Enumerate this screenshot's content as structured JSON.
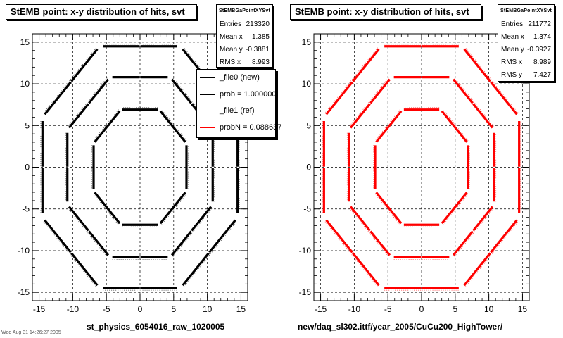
{
  "chart_data": [
    {
      "type": "scatter",
      "title": "StEMB point: x-y distribution of hits, svt",
      "xlabel": "st_physics_6054016_raw_1020005",
      "ylabel": "",
      "xlim": [
        -16,
        16
      ],
      "ylim": [
        -16,
        16
      ],
      "xticks": [
        -15,
        -10,
        -5,
        0,
        5,
        10,
        15
      ],
      "yticks": [
        -15,
        -10,
        -5,
        0,
        5,
        10,
        15
      ],
      "grid": true,
      "series": [
        {
          "color": "#000000",
          "layer_radii": [
            6.9,
            10.8,
            14.5
          ]
        }
      ],
      "stats": {
        "title": "StEMBGaPointXYSvt",
        "rows": [
          {
            "label": "Entries",
            "value": "213320"
          },
          {
            "label": "Mean x",
            "value": "1.385"
          },
          {
            "label": "Mean y",
            "value": "-0.3881"
          },
          {
            "label": "RMS x",
            "value": "8.993"
          }
        ]
      },
      "legend": {
        "placement": "right",
        "entries": [
          {
            "label": "_file0 (new)",
            "color": "#000000"
          },
          {
            "label": "prob = 1.000000",
            "color": "#000000"
          },
          {
            "label": "_file1 (ref)",
            "color": "#ff0000"
          },
          {
            "label": "probN = 0.088637",
            "color": "#ff0000"
          }
        ]
      }
    },
    {
      "type": "scatter",
      "title": "StEMB point: x-y distribution of hits, svt",
      "xlabel": "new/daq_sl302.ittf/year_2005/CuCu200_HighTower/",
      "ylabel": "",
      "xlim": [
        -16,
        16
      ],
      "ylim": [
        -16,
        16
      ],
      "xticks": [
        -15,
        -10,
        -5,
        0,
        5,
        10,
        15
      ],
      "yticks": [
        -15,
        -10,
        -5,
        0,
        5,
        10,
        15
      ],
      "grid": true,
      "series": [
        {
          "color": "#ff0000",
          "layer_radii": [
            6.9,
            10.8,
            14.5
          ]
        }
      ],
      "stats": {
        "title": "StEMBGaPointXYSvt",
        "rows": [
          {
            "label": "Entries",
            "value": "211772"
          },
          {
            "label": "Mean x",
            "value": "1.374"
          },
          {
            "label": "Mean y",
            "value": "-0.3927"
          },
          {
            "label": "RMS x",
            "value": "8.989"
          },
          {
            "label": "RMS y",
            "value": "7.427"
          }
        ]
      }
    }
  ],
  "footer": "Wed Aug 31 14:26:27 2005"
}
